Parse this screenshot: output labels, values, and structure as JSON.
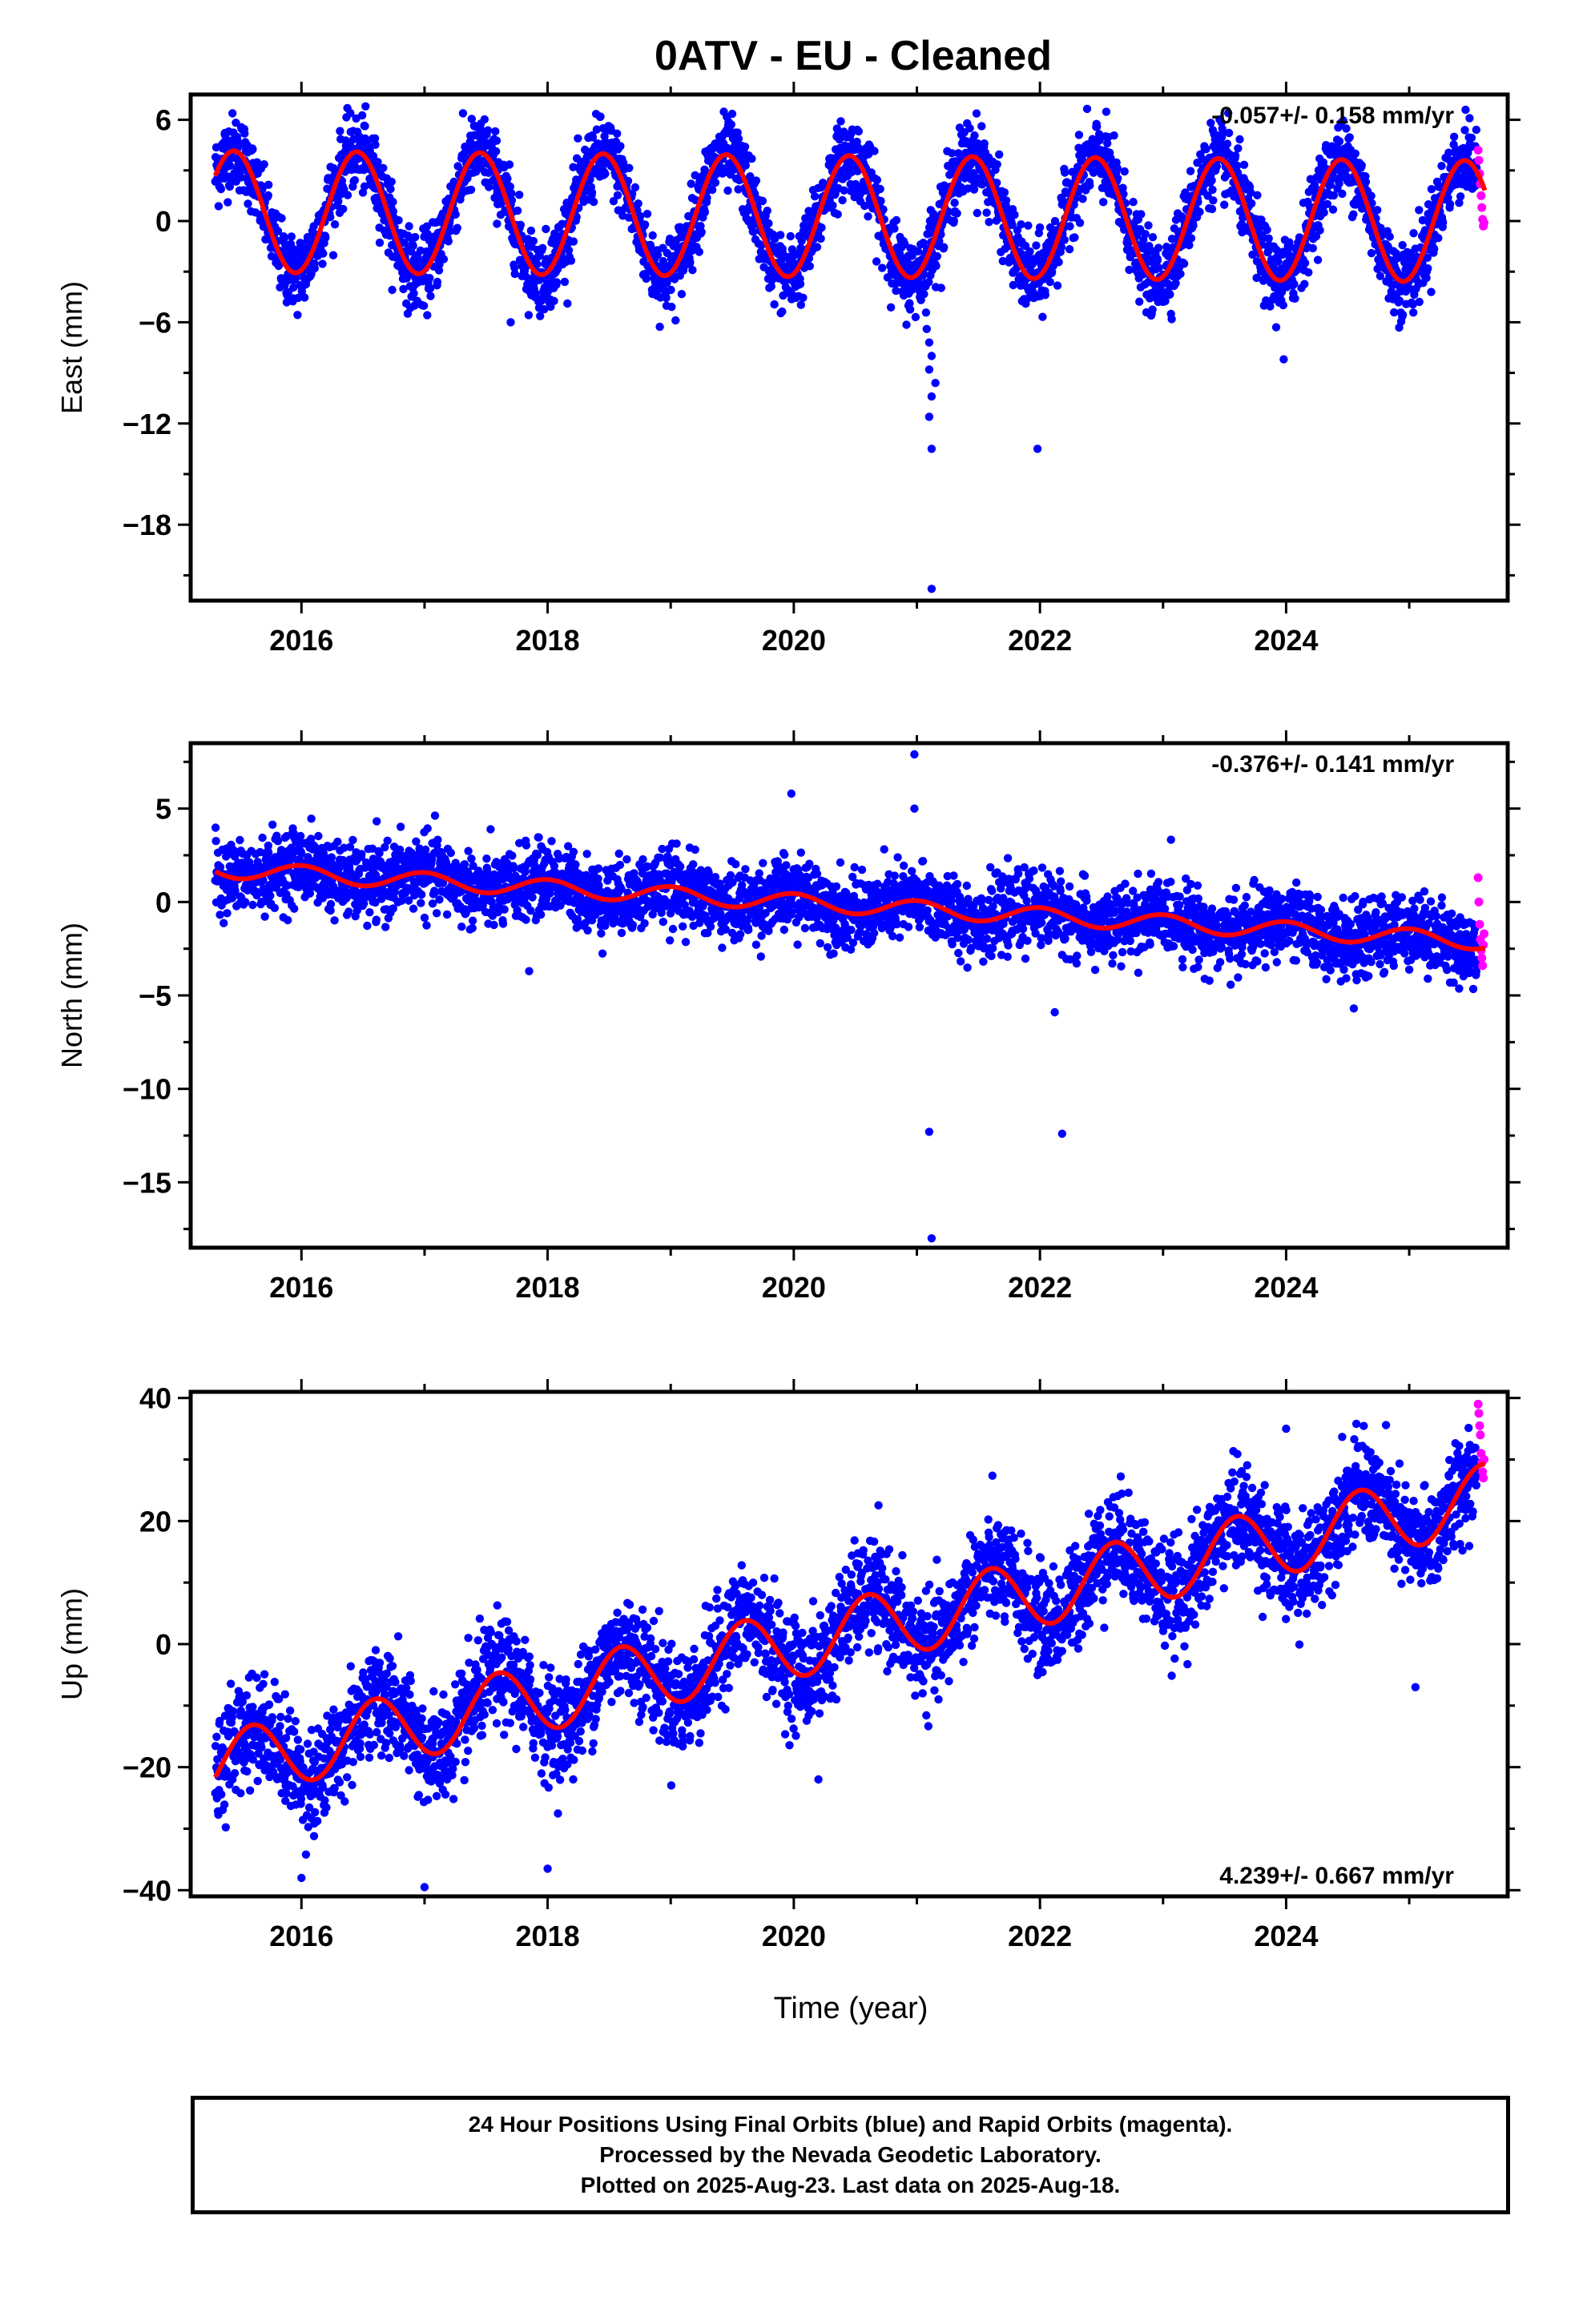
{
  "title": "0ATV  - EU - Cleaned",
  "xlabel": "Time (year)",
  "footer": {
    "line1": "24 Hour Positions Using Final Orbits (blue) and Rapid Orbits (magenta).",
    "line2": "Processed by the Nevada Geodetic Laboratory.",
    "line3": "Plotted on 2025-Aug-23. Last data on 2025-Aug-18."
  },
  "colors": {
    "final": "#0000ff",
    "rapid": "#ff00ff",
    "model": "#ff0000"
  },
  "chart_data": [
    {
      "type": "scatter",
      "ylabel": "East (mm)",
      "rate": "-0.057+/- 0.158 mm/yr",
      "xlim": [
        2015.1,
        2025.8
      ],
      "ylim": [
        -22.5,
        7.5
      ],
      "yticks": [
        6,
        0,
        -6,
        -12,
        -18
      ],
      "xticks": [
        2016,
        2018,
        2020,
        2022,
        2024
      ],
      "model": {
        "offset": 0.3,
        "trend": -0.057,
        "amplitude": 3.6,
        "phase_peak": 0.45,
        "amplitude2": 0.0,
        "phase2": 0.0
      },
      "noise": 1.1,
      "outliers": [
        [
          2021.08,
          -6.4
        ],
        [
          2021.1,
          -7.2
        ],
        [
          2021.12,
          -8.0
        ],
        [
          2021.1,
          -8.8
        ],
        [
          2021.15,
          -9.6
        ],
        [
          2021.12,
          -10.4
        ],
        [
          2021.1,
          -11.6
        ],
        [
          2021.12,
          -13.5
        ],
        [
          2021.98,
          -13.5
        ],
        [
          2021.12,
          -21.8
        ],
        [
          2023.98,
          -8.2
        ],
        [
          2017.7,
          -6.0
        ]
      ],
      "rapid_values": [
        4.2,
        3.6,
        2.8,
        2.2,
        1.5,
        0.8,
        0.1,
        -0.3,
        -0.1
      ]
    },
    {
      "type": "scatter",
      "ylabel": "North (mm)",
      "rate": "-0.376+/- 0.141 mm/yr",
      "xlim": [
        2015.1,
        2025.8
      ],
      "ylim": [
        -18.5,
        8.5
      ],
      "yticks": [
        5,
        0,
        -5,
        -10,
        -15
      ],
      "xticks": [
        2016,
        2018,
        2020,
        2022,
        2024
      ],
      "model": {
        "offset": 0.0,
        "trend": -0.376,
        "amplitude": 0.45,
        "phase_peak": 0.0,
        "amplitude2": 0.0,
        "phase2": 0.0
      },
      "noise": 0.95,
      "outliers": [
        [
          2020.98,
          7.9
        ],
        [
          2020.98,
          5.0
        ],
        [
          2019.98,
          5.8
        ],
        [
          2021.1,
          -12.3
        ],
        [
          2021.12,
          -18.0
        ],
        [
          2022.18,
          -12.4
        ],
        [
          2022.12,
          -5.9
        ],
        [
          2017.85,
          -3.7
        ],
        [
          2024.55,
          -5.7
        ]
      ],
      "rapid_values": [
        1.3,
        0.0,
        -1.2,
        -2.0,
        -2.6,
        -3.0,
        -3.4,
        -2.3,
        -1.7
      ]
    },
    {
      "type": "scatter",
      "ylabel": "Up (mm)",
      "rate": "4.239+/- 0.667 mm/yr",
      "xlim": [
        2015.1,
        2025.8
      ],
      "ylim": [
        -41,
        41
      ],
      "yticks": [
        40,
        20,
        0,
        -20,
        -40
      ],
      "xticks": [
        2016,
        2018,
        2020,
        2022,
        2024
      ],
      "model": {
        "offset": 0.0,
        "trend": 4.239,
        "amplitude": 5.5,
        "phase_peak": 0.6,
        "amplitude2": 0.0,
        "phase2": 0.0
      },
      "noise": 4.2,
      "outliers": [
        [
          2017.0,
          -39.5
        ],
        [
          2016.0,
          -38.0
        ],
        [
          2018.0,
          -36.5
        ],
        [
          2025.05,
          -7.0
        ],
        [
          2024.0,
          35.0
        ],
        [
          2020.2,
          -22.0
        ]
      ],
      "rapid_values": [
        39.0,
        37.5,
        35.5,
        34.0,
        31.0,
        29.5,
        28.0,
        27.0,
        30.0
      ]
    }
  ]
}
